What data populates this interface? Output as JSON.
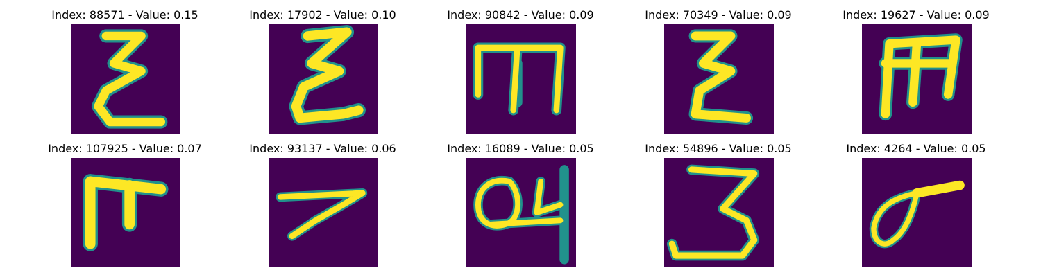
{
  "figure": {
    "panels": [
      {
        "index_text": "Index: 88571 - Value: 0.15",
        "glyph": "sigma-like-stroke"
      },
      {
        "index_text": "Index: 17902 - Value: 0.10",
        "glyph": "sigma-like-stroke"
      },
      {
        "index_text": "Index: 90842 - Value: 0.09",
        "glyph": "m-like-stroke"
      },
      {
        "index_text": "Index: 70349 - Value: 0.09",
        "glyph": "sigma-like-stroke"
      },
      {
        "index_text": "Index: 19627 - Value: 0.09",
        "glyph": "m-like-stroke"
      },
      {
        "index_text": "Index: 107925 - Value: 0.07",
        "glyph": "pi-like-stroke"
      },
      {
        "index_text": "Index: 93137 - Value: 0.06",
        "glyph": "seven-like-stroke"
      },
      {
        "index_text": "Index: 16089 - Value: 0.05",
        "glyph": "loop-and-four-stroke"
      },
      {
        "index_text": "Index: 54896 - Value: 0.05",
        "glyph": "three-like-stroke"
      },
      {
        "index_text": "Index: 4264 - Value: 0.05",
        "glyph": "loop-with-tail-stroke"
      }
    ],
    "colors": {
      "background": "#440154",
      "stroke_core": "#fde725",
      "stroke_edge": "#21918c"
    }
  }
}
